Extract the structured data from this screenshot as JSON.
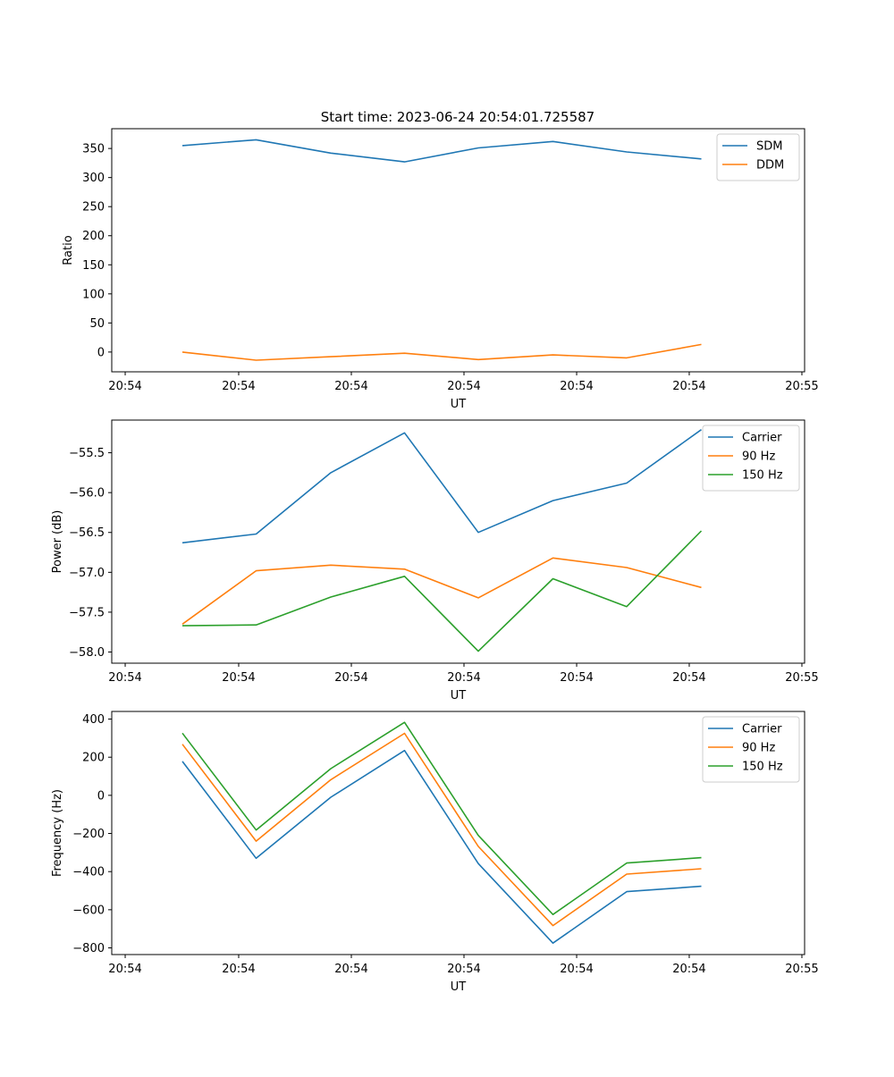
{
  "figure_title": "Start time: 2023-06-24 20:54:01.725587",
  "chart_data": [
    {
      "type": "line",
      "title": "Start time: 2023-06-24 20:54:01.725587",
      "xlabel": "UT",
      "ylabel": "Ratio",
      "x_ticks": [
        "20:54",
        "20:54",
        "20:54",
        "20:54",
        "20:54",
        "20:54",
        "20:55"
      ],
      "ylim": [
        -34,
        384
      ],
      "y_ticks": [
        0,
        50,
        100,
        150,
        200,
        250,
        300,
        350
      ],
      "legend": "top-right",
      "series": [
        {
          "name": "SDM",
          "color": "#1f77b4",
          "values": [
            355,
            365,
            342,
            327,
            351,
            362,
            344,
            332
          ]
        },
        {
          "name": "DDM",
          "color": "#ff7f0e",
          "values": [
            0,
            -14,
            -8,
            -2,
            -13,
            -5,
            -10,
            13
          ]
        }
      ]
    },
    {
      "type": "line",
      "xlabel": "UT",
      "ylabel": "Power (dB)",
      "x_ticks": [
        "20:54",
        "20:54",
        "20:54",
        "20:54",
        "20:54",
        "20:54",
        "20:55"
      ],
      "ylim": [
        -58.14,
        -55.09
      ],
      "y_ticks": [
        -58.0,
        -57.5,
        -57.0,
        -56.5,
        -56.0,
        -55.5
      ],
      "legend": "top-right",
      "series": [
        {
          "name": "Carrier",
          "color": "#1f77b4",
          "values": [
            -56.63,
            -56.52,
            -55.75,
            -55.25,
            -56.5,
            -56.1,
            -55.88,
            -55.21
          ]
        },
        {
          "name": "90 Hz",
          "color": "#ff7f0e",
          "values": [
            -57.65,
            -56.98,
            -56.91,
            -56.96,
            -57.32,
            -56.82,
            -56.94,
            -57.19
          ]
        },
        {
          "name": "150 Hz",
          "color": "#2ca02c",
          "values": [
            -57.67,
            -57.66,
            -57.31,
            -57.05,
            -57.99,
            -57.08,
            -57.43,
            -56.48
          ]
        }
      ]
    },
    {
      "type": "line",
      "xlabel": "UT",
      "ylabel": "Frequency (Hz)",
      "x_ticks": [
        "20:54",
        "20:54",
        "20:54",
        "20:54",
        "20:54",
        "20:54",
        "20:55"
      ],
      "ylim": [
        -835,
        440
      ],
      "y_ticks": [
        -800,
        -600,
        -400,
        -200,
        0,
        200,
        400
      ],
      "legend": "top-right",
      "series": [
        {
          "name": "Carrier",
          "color": "#1f77b4",
          "values": [
            178,
            -330,
            -10,
            235,
            -358,
            -775,
            -505,
            -477
          ]
        },
        {
          "name": "90 Hz",
          "color": "#ff7f0e",
          "values": [
            268,
            -240,
            82,
            325,
            -268,
            -683,
            -413,
            -385
          ]
        },
        {
          "name": "150 Hz",
          "color": "#2ca02c",
          "values": [
            326,
            -182,
            140,
            383,
            -210,
            -625,
            -355,
            -327
          ]
        }
      ]
    }
  ]
}
